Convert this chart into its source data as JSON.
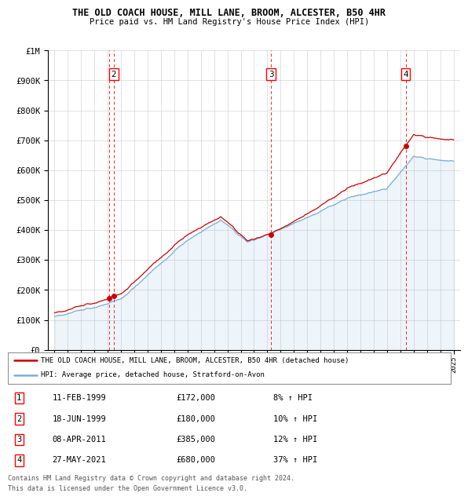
{
  "title": "THE OLD COACH HOUSE, MILL LANE, BROOM, ALCESTER, B50 4HR",
  "subtitle": "Price paid vs. HM Land Registry's House Price Index (HPI)",
  "legend_line1": "THE OLD COACH HOUSE, MILL LANE, BROOM, ALCESTER, B50 4HR (detached house)",
  "legend_line2": "HPI: Average price, detached house, Stratford-on-Avon",
  "footer1": "Contains HM Land Registry data © Crown copyright and database right 2024.",
  "footer2": "This data is licensed under the Open Government Licence v3.0.",
  "sales": [
    {
      "num": 1,
      "date": "11-FEB-1999",
      "price": 172000,
      "pct": "8%",
      "year_x": 1999.12
    },
    {
      "num": 2,
      "date": "18-JUN-1999",
      "price": 180000,
      "pct": "10%",
      "year_x": 1999.46
    },
    {
      "num": 3,
      "date": "08-APR-2011",
      "price": 385000,
      "pct": "12%",
      "year_x": 2011.27
    },
    {
      "num": 4,
      "date": "27-MAY-2021",
      "price": 680000,
      "pct": "37%",
      "year_x": 2021.4
    }
  ],
  "ylim": [
    0,
    1000000
  ],
  "xlim": [
    1994.5,
    2025.5
  ],
  "red_color": "#cc0000",
  "blue_color": "#7aaed6"
}
